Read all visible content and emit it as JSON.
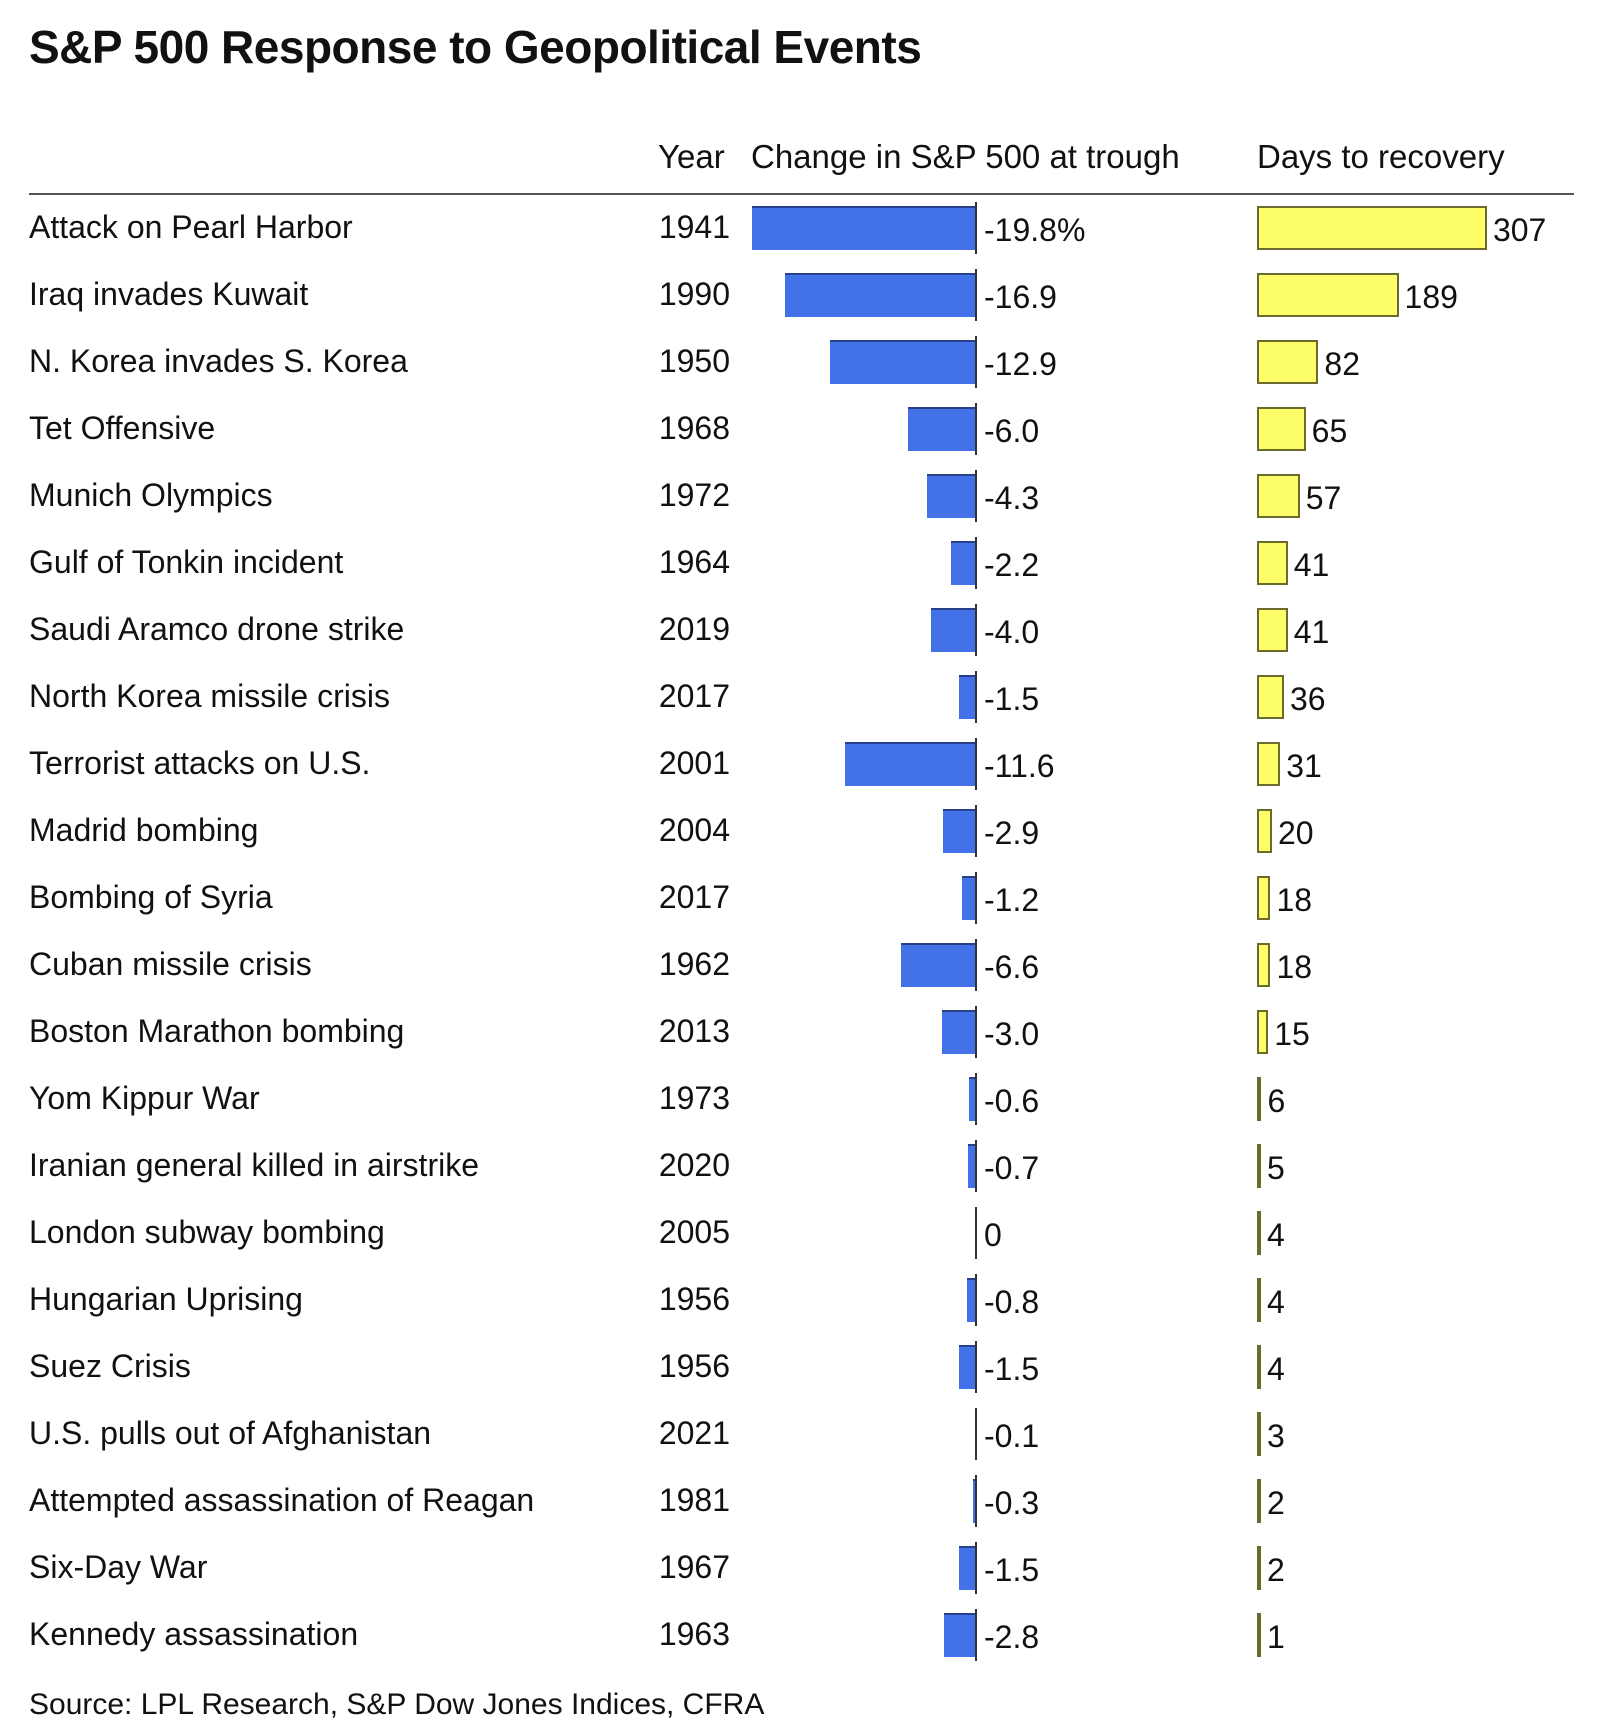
{
  "chart_data": {
    "type": "bar",
    "title": "S&P 500 Response to Geopolitical Events",
    "columns": [
      "Year",
      "Change in S&P 500 at trough",
      "Days to recovery"
    ],
    "categories": [
      "Attack on Pearl Harbor",
      "Iraq invades Kuwait",
      "N. Korea invades S. Korea",
      "Tet Offensive",
      "Munich Olympics",
      "Gulf of Tonkin incident",
      "Saudi Aramco drone strike",
      "North Korea missile crisis",
      "Terrorist attacks on U.S.",
      "Madrid bombing",
      "Bombing of Syria",
      "Cuban missile crisis",
      "Boston Marathon bombing",
      "Yom Kippur War",
      "Iranian general killed in airstrike",
      "London subway bombing",
      "Hungarian Uprising",
      "Suez Crisis",
      "U.S. pulls out of Afghanistan",
      "Attempted assassination of Reagan",
      "Six-Day War",
      "Kennedy assassination"
    ],
    "years": [
      "1941",
      "1990",
      "1950",
      "1968",
      "1972",
      "1964",
      "2019",
      "2017",
      "2001",
      "2004",
      "2017",
      "1962",
      "2013",
      "1973",
      "2020",
      "2005",
      "1956",
      "1956",
      "2021",
      "1981",
      "1967",
      "1963"
    ],
    "series": [
      {
        "name": "Change in S&P 500 at trough",
        "unit": "%",
        "color": "#4372e8",
        "values": [
          -19.8,
          -16.9,
          -12.9,
          -6.0,
          -4.3,
          -2.2,
          -4.0,
          -1.5,
          -11.6,
          -2.9,
          -1.2,
          -6.6,
          -3.0,
          -0.6,
          -0.7,
          0,
          -0.8,
          -1.5,
          -0.1,
          -0.3,
          -1.5,
          -2.8
        ],
        "labels": [
          "-19.8%",
          "-16.9",
          "-12.9",
          "-6.0",
          "-4.3",
          "-2.2",
          "-4.0",
          "-1.5",
          "-11.6",
          "-2.9",
          "-1.2",
          "-6.6",
          "-3.0",
          "-0.6",
          "-0.7",
          "0",
          "-0.8",
          "-1.5",
          "-0.1",
          "-0.3",
          "-1.5",
          "-2.8"
        ]
      },
      {
        "name": "Days to recovery",
        "unit": "days",
        "color": "#fdfd6a",
        "values": [
          307,
          189,
          82,
          65,
          57,
          41,
          41,
          36,
          31,
          20,
          18,
          18,
          15,
          6,
          5,
          4,
          4,
          4,
          3,
          2,
          2,
          1
        ],
        "labels": [
          "307",
          "189",
          "82",
          "65",
          "57",
          "41",
          "41",
          "36",
          "31",
          "20",
          "18",
          "18",
          "15",
          "6",
          "5",
          "4",
          "4",
          "4",
          "3",
          "2",
          "2",
          "1"
        ]
      }
    ],
    "source": "Source: LPL Research, S&P Dow Jones Indices, CFRA"
  }
}
